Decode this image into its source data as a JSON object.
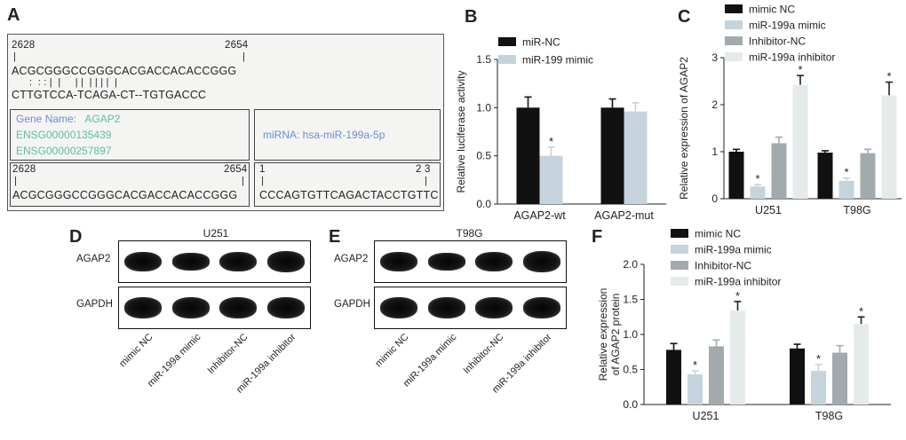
{
  "panel_labels": {
    "a": "A",
    "b": "B",
    "c": "C",
    "d": "D",
    "e": "E",
    "f": "F"
  },
  "panelA": {
    "top_pos_left": "2628",
    "top_pos_right": "2654",
    "top_seq": "ACGCGGGCCGGGCACGACCACACCGGG",
    "pairing": ":  : : |  |     | |  | | | |  |",
    "mirna_seq": "CTTGTCCA-TCAGA-CT--TGTGACCC",
    "gene_name_label": "Gene Name:",
    "gene_name": "AGAP2",
    "ensg1": "ENSG00000135439",
    "ensg2": "ENSG00000257897",
    "mirna_label": "miRNA: hsa-miR-199a-5p",
    "bottom_pos_left": "2628",
    "bottom_pos_right": "2654",
    "bottom_seq": "ACGCGGGCCGGGCACGACCACACCGGG",
    "mir_pos_left": "1",
    "mir_pos_right": "2 3",
    "mir_seq": "CCCAGTGTTCAGACTACCTGTTC"
  },
  "panelD": {
    "title": "U251",
    "rows": [
      "AGAP2",
      "GAPDH"
    ],
    "lanes": [
      "mimic NC",
      "miR-199a mimic",
      "Inhibitor-NC",
      "miR-199a inhibitor"
    ],
    "band_intensity": {
      "AGAP2": [
        0.9,
        0.6,
        0.9,
        1.0
      ],
      "GAPDH": [
        1.0,
        1.0,
        1.0,
        1.0
      ]
    }
  },
  "panelE": {
    "title": "T98G",
    "rows": [
      "AGAP2",
      "GAPDH"
    ],
    "lanes": [
      "mimic NC",
      "miR-199a mimic",
      "Inhibitor-NC",
      "miR-199a inhibitor"
    ],
    "band_intensity": {
      "AGAP2": [
        0.85,
        0.6,
        0.85,
        1.0
      ],
      "GAPDH": [
        1.0,
        1.0,
        1.0,
        1.0
      ]
    }
  },
  "chart_data": [
    {
      "id": "B",
      "type": "bar",
      "categories": [
        "AGAP2-wt",
        "AGAP2-mut"
      ],
      "series": [
        {
          "name": "miR-NC",
          "color": "#111111",
          "values": [
            1.0,
            1.0
          ],
          "errors": [
            0.11,
            0.09
          ],
          "sig": [
            "",
            ""
          ]
        },
        {
          "name": "miR-199 mimic",
          "color": "#c5d3dc",
          "values": [
            0.5,
            0.96
          ],
          "errors": [
            0.09,
            0.09
          ],
          "sig": [
            "*",
            ""
          ]
        }
      ],
      "ylabel": "Relative luciferase activity",
      "ylim": [
        0,
        1.5
      ],
      "yticks": [
        "0.0",
        "0.5",
        "1.0",
        "1.5"
      ],
      "grid": false,
      "legend": "top-left"
    },
    {
      "id": "C",
      "type": "bar",
      "categories": [
        "U251",
        "T98G"
      ],
      "series": [
        {
          "name": "mimic NC",
          "color": "#111111",
          "values": [
            1.0,
            0.98
          ],
          "errors": [
            0.05,
            0.04
          ],
          "sig": [
            "",
            ""
          ]
        },
        {
          "name": "miR-199a mimic",
          "color": "#c5d3dc",
          "values": [
            0.26,
            0.38
          ],
          "errors": [
            0.04,
            0.06
          ],
          "sig": [
            "*",
            "*"
          ]
        },
        {
          "name": "Inhibitor-NC",
          "color": "#a3aaae",
          "values": [
            1.18,
            0.97
          ],
          "errors": [
            0.13,
            0.08
          ],
          "sig": [
            "",
            ""
          ]
        },
        {
          "name": "miR-199a inhibitor",
          "color": "#e5ebea",
          "values": [
            2.42,
            2.2
          ],
          "errors": [
            0.2,
            0.28
          ],
          "sig": [
            "*",
            "*"
          ]
        }
      ],
      "ylabel": "Relative expression of AGAP2",
      "ylim": [
        0,
        3
      ],
      "yticks": [
        "0",
        "1",
        "2",
        "3"
      ],
      "grid": false,
      "legend": "top-left"
    },
    {
      "id": "F",
      "type": "bar",
      "categories": [
        "U251",
        "T98G"
      ],
      "series": [
        {
          "name": "mimic NC",
          "color": "#111111",
          "values": [
            0.78,
            0.8
          ],
          "errors": [
            0.09,
            0.06
          ],
          "sig": [
            "",
            ""
          ]
        },
        {
          "name": "miR-199a mimic",
          "color": "#c5d3dc",
          "values": [
            0.43,
            0.48
          ],
          "errors": [
            0.05,
            0.09
          ],
          "sig": [
            "*",
            "*"
          ]
        },
        {
          "name": "Inhibitor-NC",
          "color": "#a3aaae",
          "values": [
            0.83,
            0.74
          ],
          "errors": [
            0.09,
            0.1
          ],
          "sig": [
            "",
            ""
          ]
        },
        {
          "name": "miR-199a inhibitor",
          "color": "#e5ebea",
          "values": [
            1.34,
            1.15
          ],
          "errors": [
            0.13,
            0.1
          ],
          "sig": [
            "*",
            "*"
          ]
        }
      ],
      "ylabel": [
        "Relative expression",
        "of AGAP2 protein"
      ],
      "ylim": [
        0,
        2.0
      ],
      "yticks": [
        "0.0",
        "0.5",
        "1.0",
        "1.5",
        "2.0"
      ],
      "grid": false,
      "legend": "top-left"
    }
  ]
}
